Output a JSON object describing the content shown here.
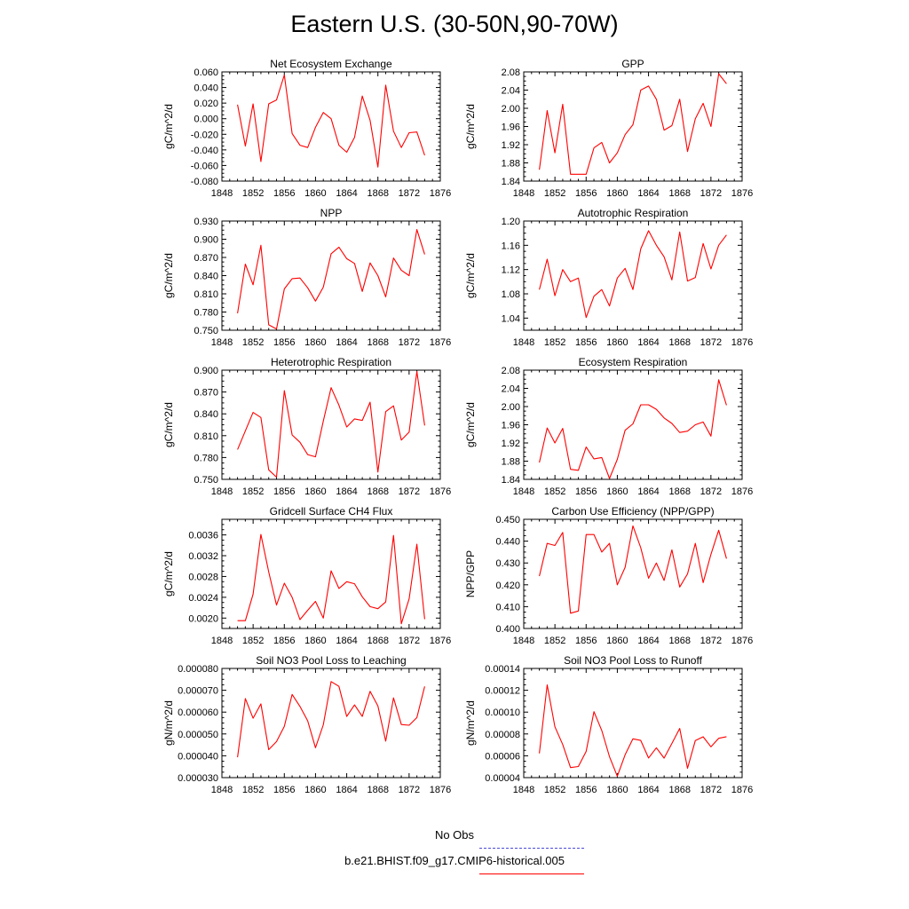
{
  "page_title": "Eastern U.S. (30-50N,90-70W)",
  "legend": {
    "entries": [
      {
        "label": "No Obs",
        "color": "#4a4ad8",
        "style": "dashed"
      },
      {
        "label": "b.e21.BHIST.f09_g17.CMIP6-historical.005",
        "color": "#ff0000",
        "style": "solid"
      }
    ]
  },
  "chart_data": [
    {
      "type": "line",
      "title": "Net Ecosystem Exchange",
      "ylabel": "gC/m^2/d",
      "xlabel": "",
      "xlim": [
        1848,
        1876
      ],
      "xticks": [
        "1848",
        "1852",
        "1856",
        "1860",
        "1864",
        "1868",
        "1872",
        "1876"
      ],
      "ylim": [
        -0.08,
        0.06
      ],
      "yticks": [
        "-0.080",
        "-0.060",
        "-0.040",
        "-0.020",
        "0.000",
        "0.020",
        "0.040",
        "0.060"
      ],
      "series": [
        {
          "color": "#ff0000",
          "x": [
            1850,
            1851,
            1852,
            1853,
            1854,
            1855,
            1856,
            1857,
            1858,
            1859,
            1860,
            1861,
            1862,
            1863,
            1864,
            1865,
            1866,
            1867,
            1868,
            1869,
            1870,
            1871,
            1872,
            1873,
            1874
          ],
          "values": [
            0.018,
            -0.035,
            0.019,
            -0.055,
            0.019,
            0.024,
            0.056,
            -0.019,
            -0.034,
            -0.037,
            -0.011,
            0.008,
            0.0,
            -0.034,
            -0.043,
            -0.024,
            0.029,
            -0.002,
            -0.062,
            0.043,
            -0.016,
            -0.037,
            -0.018,
            -0.017,
            -0.047
          ]
        }
      ]
    },
    {
      "type": "line",
      "title": "GPP",
      "ylabel": "gC/m^2/d",
      "xlabel": "",
      "xlim": [
        1848,
        1876
      ],
      "xticks": [
        "1848",
        "1852",
        "1856",
        "1860",
        "1864",
        "1868",
        "1872",
        "1876"
      ],
      "ylim": [
        1.84,
        2.08
      ],
      "yticks": [
        "1.84",
        "1.88",
        "1.92",
        "1.96",
        "2.00",
        "2.04",
        "2.08"
      ],
      "series": [
        {
          "color": "#ff0000",
          "x": [
            1850,
            1851,
            1852,
            1853,
            1854,
            1855,
            1856,
            1857,
            1858,
            1859,
            1860,
            1861,
            1862,
            1863,
            1864,
            1865,
            1866,
            1867,
            1868,
            1869,
            1870,
            1871,
            1872,
            1873,
            1874
          ],
          "values": [
            1.865,
            1.995,
            1.902,
            2.009,
            1.855,
            1.855,
            1.855,
            1.913,
            1.925,
            1.88,
            1.902,
            1.942,
            1.964,
            2.04,
            2.049,
            2.02,
            1.952,
            1.962,
            2.02,
            1.905,
            1.977,
            2.011,
            1.96,
            2.076,
            2.054
          ]
        }
      ]
    },
    {
      "type": "line",
      "title": "NPP",
      "ylabel": "gC/m^2/d",
      "xlabel": "",
      "xlim": [
        1848,
        1876
      ],
      "xticks": [
        "1848",
        "1852",
        "1856",
        "1860",
        "1864",
        "1868",
        "1872",
        "1876"
      ],
      "ylim": [
        0.75,
        0.93
      ],
      "yticks": [
        "0.750",
        "0.780",
        "0.810",
        "0.840",
        "0.870",
        "0.900",
        "0.930"
      ],
      "series": [
        {
          "color": "#ff0000",
          "x": [
            1850,
            1851,
            1852,
            1853,
            1854,
            1855,
            1856,
            1857,
            1858,
            1859,
            1860,
            1861,
            1862,
            1863,
            1864,
            1865,
            1866,
            1867,
            1868,
            1869,
            1870,
            1871,
            1872,
            1873,
            1874
          ],
          "values": [
            0.778,
            0.859,
            0.825,
            0.89,
            0.759,
            0.752,
            0.818,
            0.835,
            0.836,
            0.82,
            0.798,
            0.821,
            0.876,
            0.887,
            0.868,
            0.86,
            0.814,
            0.861,
            0.84,
            0.805,
            0.869,
            0.849,
            0.84,
            0.916,
            0.875
          ]
        }
      ]
    },
    {
      "type": "line",
      "title": "Autotrophic Respiration",
      "ylabel": "gC/m^2/d",
      "xlabel": "",
      "xlim": [
        1848,
        1876
      ],
      "xticks": [
        "1848",
        "1852",
        "1856",
        "1860",
        "1864",
        "1868",
        "1872",
        "1876"
      ],
      "ylim": [
        1.02,
        1.2
      ],
      "yticks": [
        "1.04",
        "1.08",
        "1.12",
        "1.16",
        "1.20"
      ],
      "series": [
        {
          "color": "#ff0000",
          "x": [
            1850,
            1851,
            1852,
            1853,
            1854,
            1855,
            1856,
            1857,
            1858,
            1859,
            1860,
            1861,
            1862,
            1863,
            1864,
            1865,
            1866,
            1867,
            1868,
            1869,
            1870,
            1871,
            1872,
            1873,
            1874
          ],
          "values": [
            1.087,
            1.137,
            1.077,
            1.12,
            1.1,
            1.106,
            1.041,
            1.076,
            1.087,
            1.06,
            1.106,
            1.122,
            1.087,
            1.154,
            1.184,
            1.16,
            1.141,
            1.103,
            1.182,
            1.101,
            1.107,
            1.163,
            1.121,
            1.16,
            1.177
          ]
        }
      ]
    },
    {
      "type": "line",
      "title": "Heterotrophic Respiration",
      "ylabel": "gC/m^2/d",
      "xlabel": "",
      "xlim": [
        1848,
        1876
      ],
      "xticks": [
        "1848",
        "1852",
        "1856",
        "1860",
        "1864",
        "1868",
        "1872",
        "1876"
      ],
      "ylim": [
        0.75,
        0.9
      ],
      "yticks": [
        "0.750",
        "0.780",
        "0.810",
        "0.840",
        "0.870",
        "0.900"
      ],
      "series": [
        {
          "color": "#ff0000",
          "x": [
            1850,
            1852,
            1853,
            1854,
            1855,
            1856,
            1857,
            1858,
            1859,
            1860,
            1861,
            1862,
            1863,
            1864,
            1865,
            1866,
            1867,
            1868,
            1869,
            1870,
            1871,
            1872,
            1873,
            1874
          ],
          "values": [
            0.791,
            0.842,
            0.835,
            0.763,
            0.753,
            0.872,
            0.811,
            0.801,
            0.784,
            0.781,
            0.83,
            0.876,
            0.852,
            0.822,
            0.833,
            0.831,
            0.856,
            0.76,
            0.843,
            0.851,
            0.804,
            0.815,
            0.898,
            0.824
          ]
        }
      ]
    },
    {
      "type": "line",
      "title": "Ecosystem Respiration",
      "ylabel": "gC/m^2/d",
      "xlabel": "",
      "xlim": [
        1848,
        1876
      ],
      "xticks": [
        "1848",
        "1852",
        "1856",
        "1860",
        "1864",
        "1868",
        "1872",
        "1876"
      ],
      "ylim": [
        1.84,
        2.08
      ],
      "yticks": [
        "1.84",
        "1.88",
        "1.92",
        "1.96",
        "2.00",
        "2.04",
        "2.08"
      ],
      "series": [
        {
          "color": "#ff0000",
          "x": [
            1850,
            1851,
            1852,
            1853,
            1854,
            1855,
            1856,
            1857,
            1858,
            1859,
            1860,
            1861,
            1862,
            1863,
            1864,
            1865,
            1866,
            1867,
            1868,
            1869,
            1870,
            1871,
            1872,
            1873,
            1874
          ],
          "values": [
            1.877,
            1.953,
            1.92,
            1.952,
            1.862,
            1.86,
            1.911,
            1.885,
            1.888,
            1.842,
            1.884,
            1.948,
            1.962,
            2.004,
            2.004,
            1.994,
            1.975,
            1.963,
            1.943,
            1.946,
            1.96,
            1.966,
            1.935,
            2.059,
            2.003
          ]
        }
      ]
    },
    {
      "type": "line",
      "title": "Gridcell Surface CH4 Flux",
      "ylabel": "gC/m^2/d",
      "xlabel": "",
      "xlim": [
        1848,
        1876
      ],
      "xticks": [
        "1848",
        "1852",
        "1856",
        "1860",
        "1864",
        "1868",
        "1872",
        "1876"
      ],
      "ylim": [
        0.0018,
        0.0039
      ],
      "yticks": [
        "0.0020",
        "0.0024",
        "0.0028",
        "0.0032",
        "0.0036"
      ],
      "series": [
        {
          "color": "#ff0000",
          "x": [
            1850,
            1851,
            1852,
            1853,
            1854,
            1855,
            1856,
            1857,
            1858,
            1859,
            1860,
            1861,
            1862,
            1863,
            1864,
            1865,
            1866,
            1867,
            1868,
            1869,
            1870,
            1871,
            1872,
            1873,
            1874
          ],
          "values": [
            0.00195,
            0.00195,
            0.00246,
            0.00361,
            0.00289,
            0.00225,
            0.00267,
            0.0024,
            0.00197,
            0.00215,
            0.00232,
            0.002,
            0.00291,
            0.00257,
            0.0027,
            0.00266,
            0.00241,
            0.00222,
            0.00218,
            0.00231,
            0.00359,
            0.00189,
            0.00237,
            0.00342,
            0.00198
          ]
        }
      ]
    },
    {
      "type": "line",
      "title": "Carbon Use Efficiency (NPP/GPP)",
      "ylabel": "NPP/GPP",
      "xlabel": "",
      "xlim": [
        1848,
        1876
      ],
      "xticks": [
        "1848",
        "1852",
        "1856",
        "1860",
        "1864",
        "1868",
        "1872",
        "1876"
      ],
      "ylim": [
        0.4,
        0.45
      ],
      "yticks": [
        "0.400",
        "0.410",
        "0.420",
        "0.430",
        "0.440",
        "0.450"
      ],
      "series": [
        {
          "color": "#ff0000",
          "x": [
            1850,
            1851,
            1852,
            1853,
            1854,
            1855,
            1856,
            1857,
            1858,
            1859,
            1860,
            1861,
            1862,
            1863,
            1864,
            1865,
            1866,
            1867,
            1868,
            1869,
            1870,
            1871,
            1872,
            1873,
            1874
          ],
          "values": [
            0.424,
            0.439,
            0.438,
            0.444,
            0.407,
            0.408,
            0.443,
            0.443,
            0.435,
            0.439,
            0.42,
            0.428,
            0.447,
            0.437,
            0.423,
            0.43,
            0.422,
            0.436,
            0.419,
            0.425,
            0.439,
            0.421,
            0.434,
            0.445,
            0.432
          ]
        }
      ]
    },
    {
      "type": "line",
      "title": "Soil NO3 Pool Loss to Leaching",
      "ylabel": "gN/m^2/d",
      "xlabel": "",
      "xlim": [
        1848,
        1876
      ],
      "xticks": [
        "1848",
        "1852",
        "1856",
        "1860",
        "1864",
        "1868",
        "1872",
        "1876"
      ],
      "ylim": [
        3e-05,
        8e-05
      ],
      "yticks": [
        "0.000030",
        "0.000040",
        "0.000050",
        "0.000060",
        "0.000070",
        "0.000080"
      ],
      "series": [
        {
          "color": "#ff0000",
          "x": [
            1850,
            1851,
            1852,
            1853,
            1854,
            1855,
            1856,
            1857,
            1858,
            1859,
            1860,
            1861,
            1862,
            1863,
            1864,
            1865,
            1866,
            1867,
            1868,
            1869,
            1870,
            1871,
            1872,
            1873,
            1874
          ],
          "values": [
            3.93e-05,
            6.62e-05,
            5.72e-05,
            6.38e-05,
            4.28e-05,
            4.65e-05,
            5.35e-05,
            6.81e-05,
            6.26e-05,
            5.6e-05,
            4.37e-05,
            5.42e-05,
            7.4e-05,
            7.18e-05,
            5.8e-05,
            6.33e-05,
            5.8e-05,
            6.95e-05,
            6.28e-05,
            4.67e-05,
            6.65e-05,
            5.43e-05,
            5.4e-05,
            5.75e-05,
            7.18e-05
          ]
        }
      ]
    },
    {
      "type": "line",
      "title": "Soil NO3 Pool Loss to Runoff",
      "ylabel": "gN/m^2/d",
      "xlabel": "",
      "xlim": [
        1848,
        1876
      ],
      "xticks": [
        "1848",
        "1852",
        "1856",
        "1860",
        "1864",
        "1868",
        "1872",
        "1876"
      ],
      "ylim": [
        4e-05,
        0.00014
      ],
      "yticks": [
        "0.00004",
        "0.00006",
        "0.00008",
        "0.00010",
        "0.00012",
        "0.00014"
      ],
      "series": [
        {
          "color": "#ff0000",
          "x": [
            1850,
            1851,
            1852,
            1853,
            1854,
            1855,
            1856,
            1857,
            1858,
            1859,
            1860,
            1861,
            1862,
            1863,
            1864,
            1865,
            1866,
            1867,
            1868,
            1869,
            1870,
            1871,
            1872,
            1873,
            1874
          ],
          "values": [
            6.22e-05,
            0.000125,
            8.66e-05,
            7.03e-05,
            4.92e-05,
            5.02e-05,
            6.4e-05,
            0.0001004,
            8.32e-05,
            5.92e-05,
            4.13e-05,
            6.09e-05,
            7.55e-05,
            7.41e-05,
            5.8e-05,
            6.73e-05,
            5.79e-05,
            7.13e-05,
            8.5e-05,
            4.85e-05,
            7.4e-05,
            7.74e-05,
            6.82e-05,
            7.6e-05,
            7.75e-05
          ]
        }
      ]
    }
  ]
}
